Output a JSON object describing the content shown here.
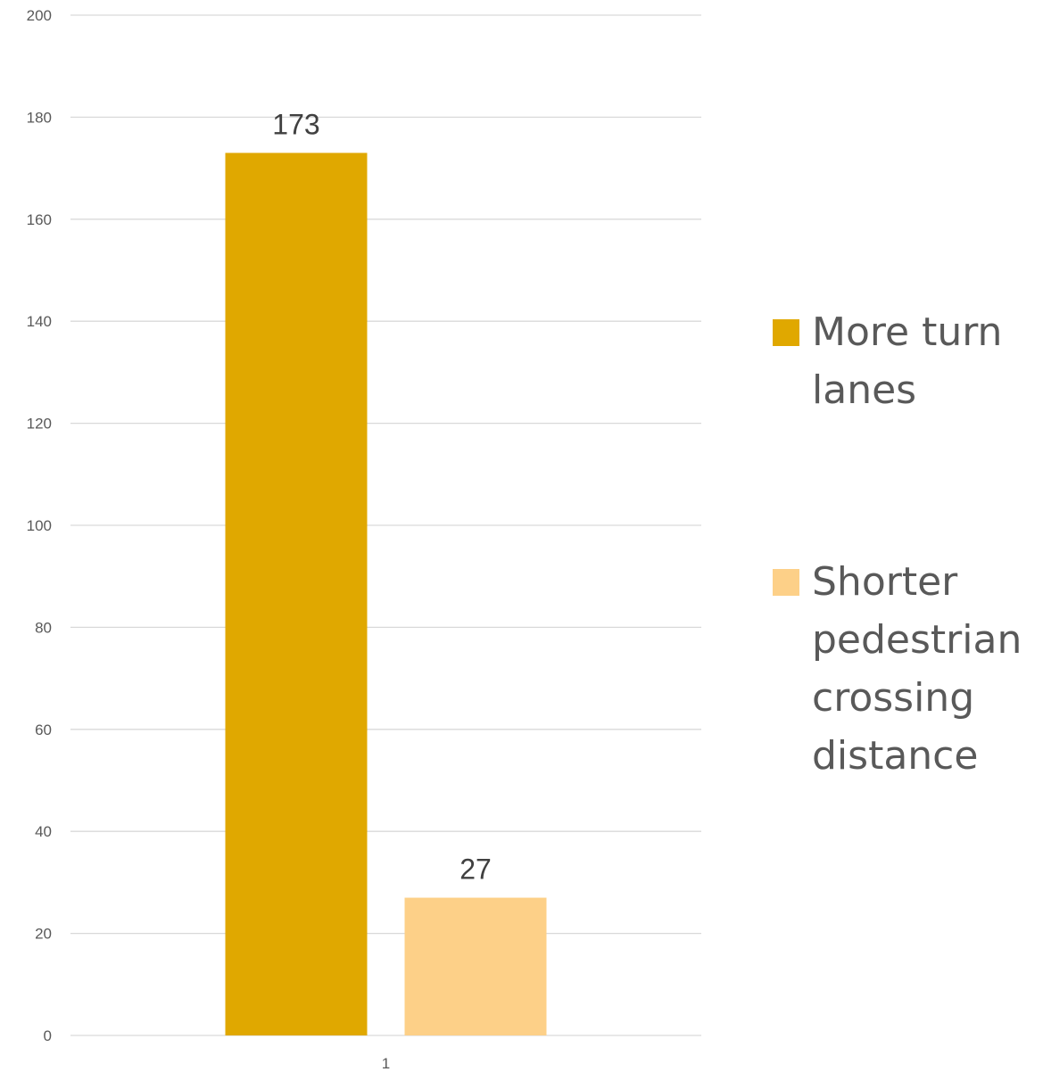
{
  "chart_data": {
    "type": "bar",
    "categories": [
      "1"
    ],
    "series": [
      {
        "name": "More turn lanes",
        "values": [
          173
        ],
        "color": "#E0A800"
      },
      {
        "name": "Shorter pedestrian crossing distance",
        "values": [
          27
        ],
        "color": "#FDD088"
      }
    ],
    "ylim": [
      0,
      200
    ],
    "yticks": [
      0,
      20,
      40,
      60,
      80,
      100,
      120,
      140,
      160,
      180,
      200
    ],
    "grid": true,
    "legend_position": "right",
    "data_labels": true,
    "title": "",
    "xlabel": "",
    "ylabel": ""
  },
  "legend": {
    "items": [
      {
        "label": "More turn lanes",
        "color": "#E0A800"
      },
      {
        "label": "Shorter pedestrian crossing distance",
        "color": "#FDD088"
      }
    ]
  }
}
